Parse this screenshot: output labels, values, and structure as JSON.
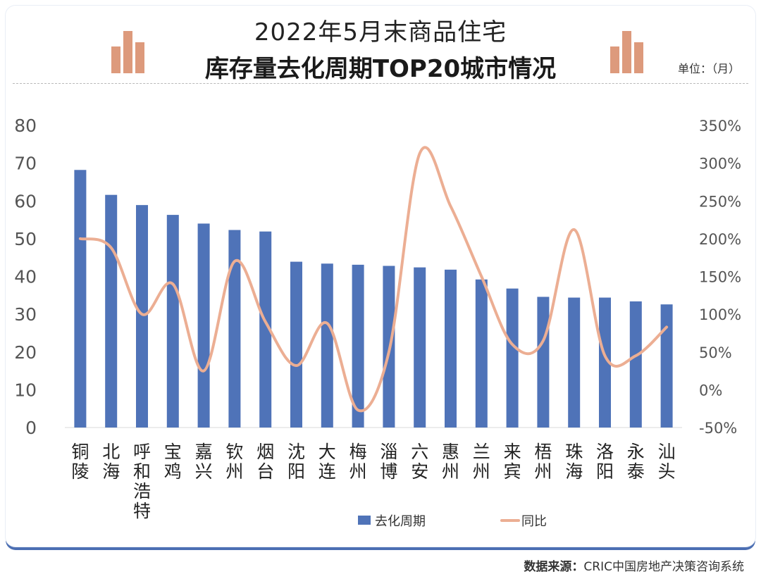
{
  "header": {
    "title_line1": "2022年5月末商品住宅",
    "title_line2": "库存量去化周期TOP20城市情况",
    "unit": "单位：（月）"
  },
  "source": {
    "label": "数据来源：",
    "text": "CRIC中国房地产决策咨询系统"
  },
  "colors": {
    "bar": "#4f73b8",
    "line": "#ecae93",
    "deco": "#dd9a7c",
    "frame": "#4c6fb3"
  },
  "chart_data": {
    "type": "bar",
    "title": "2022年5月末商品住宅库存量去化周期TOP20城市情况",
    "categories": [
      "铜陵",
      "北海",
      "呼和浩特",
      "宝鸡",
      "嘉兴",
      "钦州",
      "烟台",
      "沈阳",
      "大连",
      "梅州",
      "淄博",
      "六安",
      "惠州",
      "兰州",
      "来宾",
      "梧州",
      "珠海",
      "洛阳",
      "永泰",
      "汕头"
    ],
    "series": [
      {
        "name": "去化周期",
        "type": "bar",
        "axis": "left",
        "values": [
          68.2,
          61.6,
          58.9,
          56.3,
          54.0,
          52.3,
          51.9,
          43.9,
          43.4,
          43.1,
          42.8,
          42.4,
          41.8,
          39.2,
          36.8,
          34.6,
          34.4,
          34.4,
          33.4,
          32.6
        ]
      },
      {
        "name": "同比",
        "type": "line",
        "axis": "right",
        "unit": "%",
        "values": [
          200,
          188,
          100,
          140,
          25,
          170,
          90,
          32,
          88,
          -27,
          50,
          313,
          243,
          150,
          60,
          65,
          212,
          45,
          45,
          83
        ]
      }
    ],
    "y_left": {
      "min": 0,
      "max": 80,
      "ticks": [
        "0",
        "10",
        "20",
        "30",
        "40",
        "50",
        "60",
        "70",
        "80"
      ]
    },
    "y_right": {
      "min": -50,
      "max": 350,
      "ticks": [
        "-50%",
        "0%",
        "50%",
        "100%",
        "150%",
        "200%",
        "250%",
        "300%",
        "350%"
      ]
    },
    "legend": [
      "去化周期",
      "同比"
    ],
    "legend_position": "bottom"
  }
}
